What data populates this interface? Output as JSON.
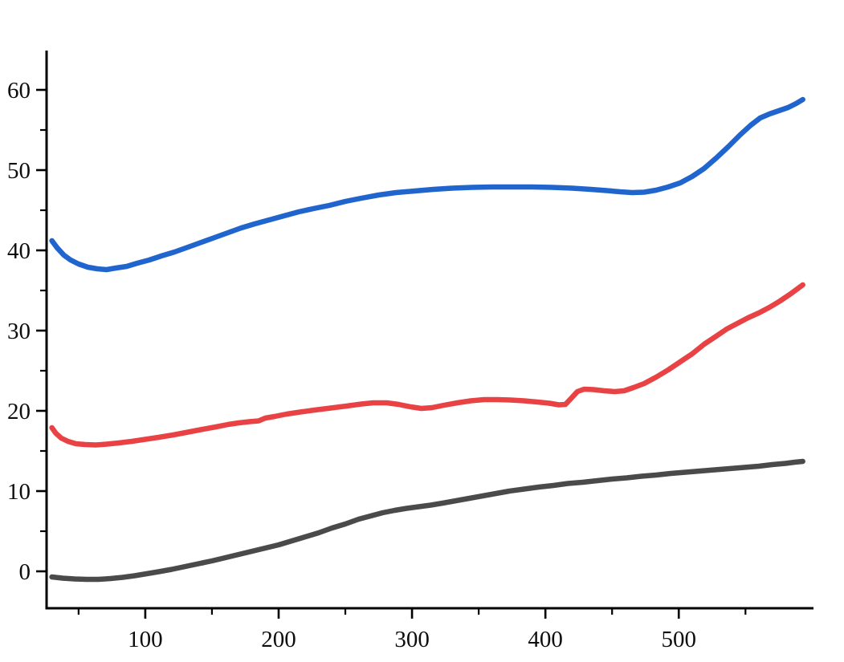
{
  "chart_data": {
    "type": "line",
    "title": "",
    "xlabel": "",
    "ylabel": "",
    "grid": false,
    "legend": null,
    "background_color": "#ffffff",
    "axis_color": "#000000",
    "tick_label_color": "#0d0d0d",
    "xlim": [
      26,
      601
    ],
    "ylim": [
      -4.6,
      64.9
    ],
    "x_ticks_major": [
      100,
      200,
      300,
      400,
      500
    ],
    "x_ticks_minor": [
      50,
      150,
      250,
      350,
      450,
      550
    ],
    "x_tick_labels": [
      "100",
      "200",
      "300",
      "400",
      "500"
    ],
    "y_ticks_major": [
      0,
      10,
      20,
      30,
      40,
      50,
      60
    ],
    "y_ticks_minor": [
      5,
      15,
      25,
      35,
      45,
      55
    ],
    "y_tick_labels": [
      "0",
      "10",
      "20",
      "30",
      "40",
      "50",
      "60"
    ],
    "series": [
      {
        "name": "blue-series",
        "color": "#2065CE",
        "points": [
          [
            30,
            41.2
          ],
          [
            34,
            40.3
          ],
          [
            39,
            39.4
          ],
          [
            44,
            38.8
          ],
          [
            50,
            38.3
          ],
          [
            57,
            37.9
          ],
          [
            64,
            37.7
          ],
          [
            71,
            37.6
          ],
          [
            78,
            37.8
          ],
          [
            86,
            38.0
          ],
          [
            94,
            38.4
          ],
          [
            103,
            38.8
          ],
          [
            112,
            39.3
          ],
          [
            122,
            39.8
          ],
          [
            132,
            40.4
          ],
          [
            142,
            41.0
          ],
          [
            152,
            41.6
          ],
          [
            162,
            42.2
          ],
          [
            172,
            42.8
          ],
          [
            182,
            43.3
          ],
          [
            193,
            43.8
          ],
          [
            204,
            44.3
          ],
          [
            215,
            44.8
          ],
          [
            226,
            45.2
          ],
          [
            238,
            45.6
          ],
          [
            250,
            46.1
          ],
          [
            262,
            46.5
          ],
          [
            275,
            46.9
          ],
          [
            288,
            47.2
          ],
          [
            302,
            47.4
          ],
          [
            316,
            47.6
          ],
          [
            330,
            47.75
          ],
          [
            345,
            47.85
          ],
          [
            360,
            47.9
          ],
          [
            375,
            47.9
          ],
          [
            390,
            47.9
          ],
          [
            405,
            47.85
          ],
          [
            420,
            47.75
          ],
          [
            434,
            47.6
          ],
          [
            446,
            47.45
          ],
          [
            456,
            47.3
          ],
          [
            465,
            47.2
          ],
          [
            474,
            47.25
          ],
          [
            483,
            47.5
          ],
          [
            492,
            47.9
          ],
          [
            501,
            48.4
          ],
          [
            510,
            49.2
          ],
          [
            519,
            50.2
          ],
          [
            528,
            51.5
          ],
          [
            537,
            52.9
          ],
          [
            546,
            54.4
          ],
          [
            554,
            55.6
          ],
          [
            561,
            56.5
          ],
          [
            568,
            57.0
          ],
          [
            575,
            57.4
          ],
          [
            582,
            57.8
          ],
          [
            588,
            58.3
          ],
          [
            593,
            58.8
          ]
        ]
      },
      {
        "name": "red-series",
        "color": "#E84245",
        "points": [
          [
            30,
            17.9
          ],
          [
            33,
            17.2
          ],
          [
            37,
            16.6
          ],
          [
            42,
            16.2
          ],
          [
            48,
            15.9
          ],
          [
            55,
            15.8
          ],
          [
            63,
            15.75
          ],
          [
            71,
            15.85
          ],
          [
            80,
            16.0
          ],
          [
            90,
            16.2
          ],
          [
            100,
            16.45
          ],
          [
            110,
            16.7
          ],
          [
            121,
            17.0
          ],
          [
            132,
            17.35
          ],
          [
            143,
            17.7
          ],
          [
            153,
            18.0
          ],
          [
            162,
            18.3
          ],
          [
            170,
            18.5
          ],
          [
            178,
            18.65
          ],
          [
            185,
            18.75
          ],
          [
            190,
            19.1
          ],
          [
            197,
            19.3
          ],
          [
            206,
            19.6
          ],
          [
            216,
            19.85
          ],
          [
            227,
            20.1
          ],
          [
            239,
            20.35
          ],
          [
            251,
            20.6
          ],
          [
            262,
            20.85
          ],
          [
            271,
            21.0
          ],
          [
            281,
            21.0
          ],
          [
            290,
            20.8
          ],
          [
            299,
            20.5
          ],
          [
            307,
            20.3
          ],
          [
            315,
            20.4
          ],
          [
            324,
            20.7
          ],
          [
            334,
            21.0
          ],
          [
            344,
            21.25
          ],
          [
            354,
            21.4
          ],
          [
            364,
            21.4
          ],
          [
            374,
            21.35
          ],
          [
            384,
            21.25
          ],
          [
            394,
            21.1
          ],
          [
            403,
            20.95
          ],
          [
            410,
            20.75
          ],
          [
            415,
            20.8
          ],
          [
            419,
            21.5
          ],
          [
            424,
            22.4
          ],
          [
            429,
            22.7
          ],
          [
            436,
            22.65
          ],
          [
            444,
            22.5
          ],
          [
            452,
            22.4
          ],
          [
            459,
            22.5
          ],
          [
            466,
            22.9
          ],
          [
            474,
            23.4
          ],
          [
            483,
            24.2
          ],
          [
            492,
            25.1
          ],
          [
            501,
            26.1
          ],
          [
            510,
            27.1
          ],
          [
            519,
            28.3
          ],
          [
            528,
            29.3
          ],
          [
            536,
            30.2
          ],
          [
            544,
            30.9
          ],
          [
            552,
            31.6
          ],
          [
            560,
            32.2
          ],
          [
            568,
            32.9
          ],
          [
            576,
            33.7
          ],
          [
            584,
            34.6
          ],
          [
            593,
            35.7
          ]
        ]
      },
      {
        "name": "dark-gray-series",
        "color": "#4A4A4A",
        "points": [
          [
            30,
            -0.7
          ],
          [
            38,
            -0.85
          ],
          [
            47,
            -0.95
          ],
          [
            56,
            -1.0
          ],
          [
            65,
            -1.0
          ],
          [
            74,
            -0.9
          ],
          [
            83,
            -0.75
          ],
          [
            92,
            -0.55
          ],
          [
            101,
            -0.3
          ],
          [
            110,
            -0.05
          ],
          [
            120,
            0.25
          ],
          [
            130,
            0.6
          ],
          [
            140,
            0.95
          ],
          [
            150,
            1.3
          ],
          [
            160,
            1.7
          ],
          [
            170,
            2.1
          ],
          [
            180,
            2.5
          ],
          [
            190,
            2.9
          ],
          [
            200,
            3.3
          ],
          [
            210,
            3.8
          ],
          [
            220,
            4.3
          ],
          [
            230,
            4.8
          ],
          [
            240,
            5.4
          ],
          [
            250,
            5.9
          ],
          [
            260,
            6.5
          ],
          [
            269,
            6.9
          ],
          [
            278,
            7.3
          ],
          [
            287,
            7.6
          ],
          [
            296,
            7.85
          ],
          [
            305,
            8.05
          ],
          [
            314,
            8.25
          ],
          [
            323,
            8.5
          ],
          [
            333,
            8.8
          ],
          [
            343,
            9.1
          ],
          [
            353,
            9.4
          ],
          [
            363,
            9.7
          ],
          [
            373,
            10.0
          ],
          [
            384,
            10.25
          ],
          [
            395,
            10.5
          ],
          [
            406,
            10.7
          ],
          [
            417,
            10.95
          ],
          [
            428,
            11.1
          ],
          [
            439,
            11.3
          ],
          [
            450,
            11.5
          ],
          [
            461,
            11.65
          ],
          [
            472,
            11.85
          ],
          [
            483,
            12.0
          ],
          [
            494,
            12.2
          ],
          [
            505,
            12.35
          ],
          [
            516,
            12.5
          ],
          [
            527,
            12.65
          ],
          [
            538,
            12.8
          ],
          [
            549,
            12.95
          ],
          [
            560,
            13.1
          ],
          [
            570,
            13.3
          ],
          [
            580,
            13.45
          ],
          [
            587,
            13.6
          ],
          [
            593,
            13.7
          ]
        ]
      }
    ]
  }
}
